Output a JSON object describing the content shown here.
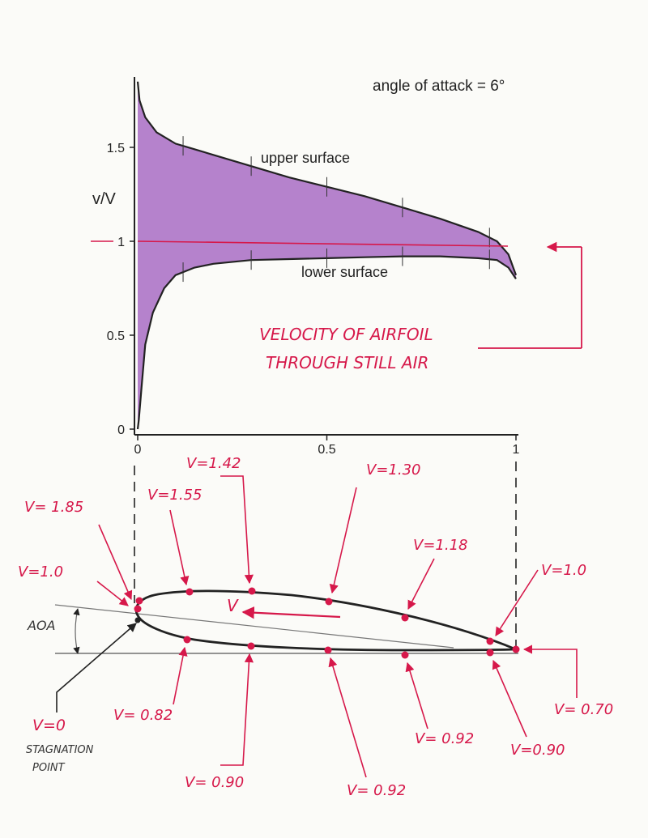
{
  "title": "angle of attack = 6°",
  "chart_data": {
    "type": "area",
    "ylabel": "v/V",
    "xlim": [
      0,
      1
    ],
    "ylim": [
      0,
      1.85
    ],
    "x_ticks": [
      "0",
      "0.5",
      "1"
    ],
    "y_ticks": [
      "0",
      "0.5",
      "1",
      "1.5"
    ],
    "series": [
      {
        "name": "upper surface",
        "x": [
          0,
          0.005,
          0.02,
          0.05,
          0.1,
          0.15,
          0.2,
          0.3,
          0.4,
          0.5,
          0.6,
          0.7,
          0.8,
          0.9,
          0.95,
          0.98,
          1.0
        ],
        "y": [
          1.85,
          1.75,
          1.66,
          1.58,
          1.52,
          1.49,
          1.46,
          1.4,
          1.34,
          1.29,
          1.24,
          1.18,
          1.12,
          1.05,
          1.0,
          0.93,
          0.82
        ]
      },
      {
        "name": "lower surface",
        "x": [
          0,
          0.003,
          0.01,
          0.02,
          0.04,
          0.07,
          0.1,
          0.15,
          0.2,
          0.3,
          0.4,
          0.5,
          0.6,
          0.7,
          0.8,
          0.9,
          0.95,
          0.98,
          1.0
        ],
        "y": [
          0,
          0.05,
          0.22,
          0.45,
          0.62,
          0.75,
          0.82,
          0.86,
          0.88,
          0.9,
          0.905,
          0.91,
          0.915,
          0.92,
          0.92,
          0.91,
          0.9,
          0.86,
          0.8
        ]
      }
    ],
    "freestream_line": 1
  },
  "annotations": {
    "velocity_note_line1": "VELOCITY OF AIRFOIL",
    "velocity_note_line2": "THROUGH STILL AIR",
    "aoa_label": "AOA",
    "v_arrow_label": "V",
    "stagnation_value": "V=0",
    "stagnation_line1": "STAGNATION",
    "stagnation_line2": "POINT",
    "upper_labels": [
      "V= 1.85",
      "V=1.0",
      "V=1.55",
      "V=1.42",
      "V=1.30",
      "V=1.18",
      "V=1.0"
    ],
    "lower_labels": [
      "V= 0.82",
      "V= 0.90",
      "V= 0.92",
      "V= 0.92",
      "V=0.90",
      "V= 0.70"
    ]
  },
  "colors": {
    "fill": "#b582cc",
    "fill_edge": "#8a5aa5",
    "red": "#d6184a",
    "ink": "#222222"
  }
}
